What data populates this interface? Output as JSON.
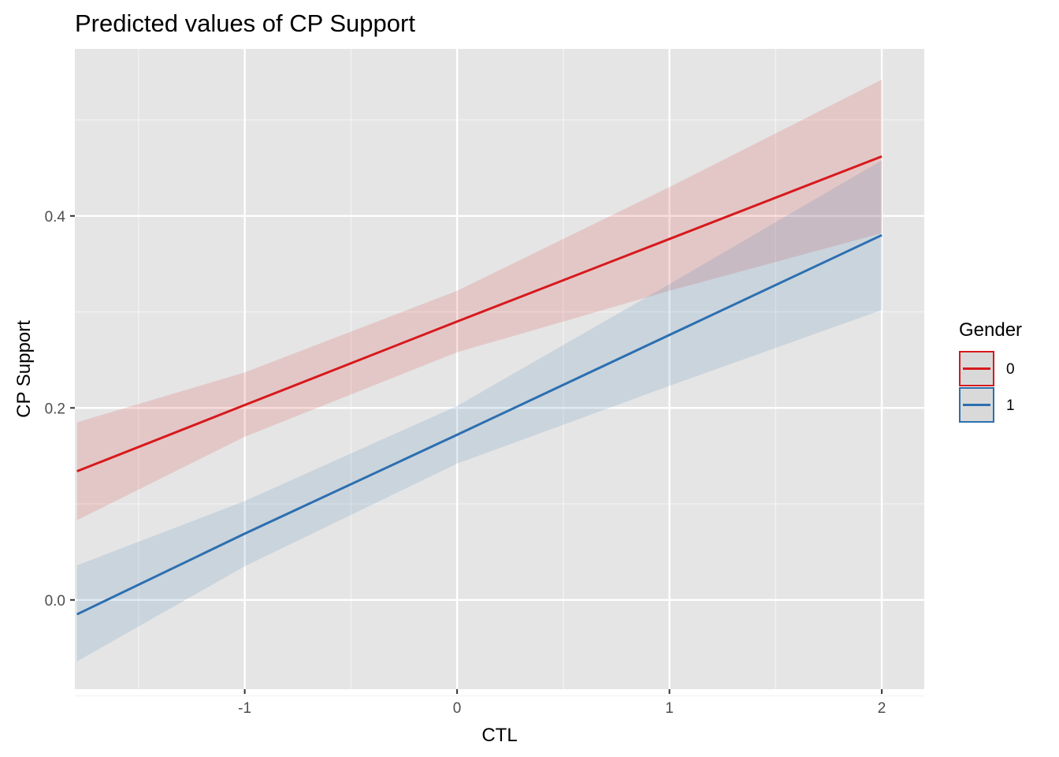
{
  "chart_data": {
    "type": "line",
    "title": "Predicted values of CP Support",
    "xlabel": "CTL",
    "ylabel": "CP Support",
    "xlim": [
      -1.8,
      2.2
    ],
    "ylim": [
      -0.093,
      0.574
    ],
    "x_ticks": [
      -1,
      0,
      1,
      2
    ],
    "y_ticks": [
      0.0,
      0.2,
      0.4
    ],
    "x_tick_labels": [
      "-1",
      "0",
      "1",
      "2"
    ],
    "y_tick_labels": [
      "0.0",
      "0.2",
      "0.4"
    ],
    "x_minor_ticks": [
      -1.5,
      -0.5,
      0.5,
      1.5
    ],
    "y_minor_ticks": [
      -0.1,
      0.1,
      0.3,
      0.5
    ],
    "grid": true,
    "legend": {
      "title": "Gender",
      "position": "right"
    },
    "series": [
      {
        "name": "0",
        "color": "#d7191c",
        "x": [
          -1.79,
          -1.0,
          0.0,
          1.0,
          2.0
        ],
        "y": [
          0.134,
          0.203,
          0.29,
          0.376,
          0.462
        ],
        "lower": [
          0.083,
          0.17,
          0.258,
          0.322,
          0.382
        ],
        "upper": [
          0.185,
          0.237,
          0.322,
          0.43,
          0.542
        ]
      },
      {
        "name": "1",
        "color": "#2c6fb0",
        "x": [
          -1.79,
          -1.0,
          0.0,
          1.0,
          2.0
        ],
        "y": [
          -0.015,
          0.069,
          0.172,
          0.276,
          0.38
        ],
        "lower": [
          -0.064,
          0.035,
          0.142,
          0.223,
          0.302
        ],
        "upper": [
          0.036,
          0.103,
          0.202,
          0.329,
          0.458
        ]
      }
    ]
  }
}
